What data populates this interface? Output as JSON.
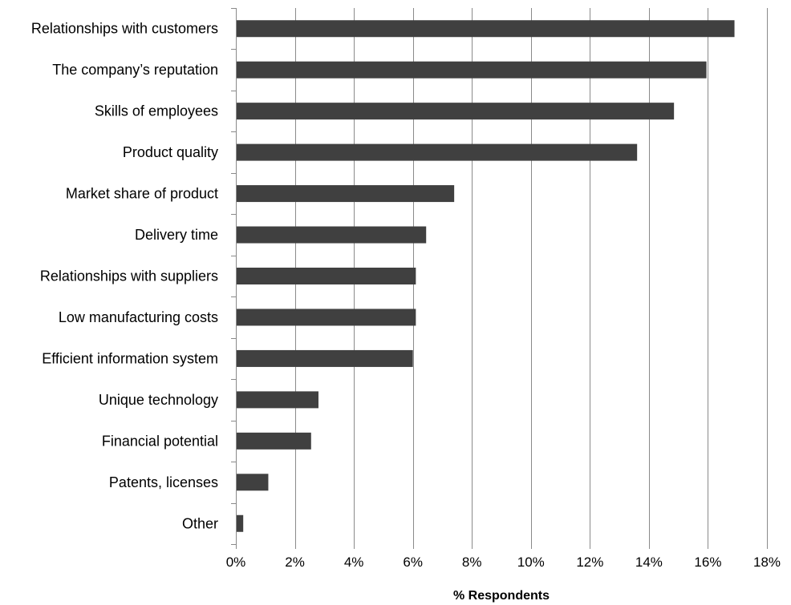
{
  "chart_data": {
    "type": "bar",
    "orientation": "horizontal",
    "categories": [
      "Relationships with customers",
      "The company’s reputation",
      "Skills of employees",
      "Product quality",
      "Market share of product",
      "Delivery time",
      "Relationships with suppliers",
      "Low manufacturing costs",
      "Efficient information system",
      "Unique technology",
      "Financial potential",
      "Patents, licenses",
      "Other"
    ],
    "values": [
      16.9,
      15.95,
      14.85,
      13.6,
      7.4,
      6.45,
      6.1,
      6.1,
      6.0,
      2.8,
      2.55,
      1.1,
      0.25
    ],
    "xlabel": "% Respondents",
    "ylabel": "",
    "xlim": [
      0,
      18
    ],
    "xticks": [
      0,
      2,
      4,
      6,
      8,
      10,
      12,
      14,
      16,
      18
    ],
    "xtick_labels": [
      "0%",
      "2%",
      "4%",
      "6%",
      "8%",
      "10%",
      "12%",
      "14%",
      "16%",
      "18%"
    ],
    "grid": true,
    "legend": "none",
    "bar_color": "#404040",
    "grid_color": "#8a8a8a"
  }
}
